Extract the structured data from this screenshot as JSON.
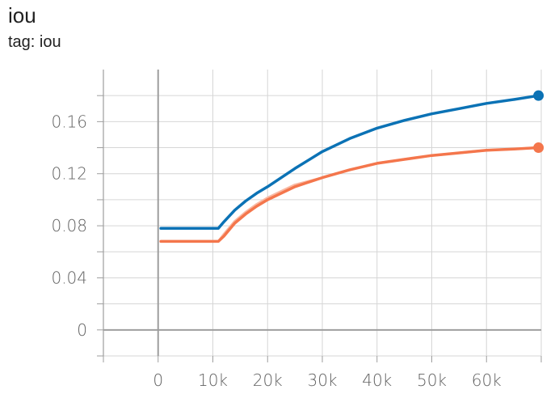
{
  "header": {
    "title": "iou",
    "tag": "tag: iou"
  },
  "chart_data": {
    "type": "line",
    "title": "iou",
    "subtitle": "tag: iou",
    "xlabel": "",
    "ylabel": "",
    "xlim": [
      -10000,
      70000
    ],
    "ylim": [
      -0.02,
      0.2
    ],
    "grid": true,
    "xticks": [
      0,
      10000,
      20000,
      30000,
      40000,
      50000,
      60000
    ],
    "xtick_labels": [
      "0",
      "10k",
      "20k",
      "30k",
      "40k",
      "50k",
      "60k"
    ],
    "yticks": [
      0,
      0.04,
      0.08,
      0.12,
      0.16
    ],
    "ytick_labels": [
      "0",
      "0.04",
      "0.08",
      "0.12",
      "0.16"
    ],
    "colors": {
      "series_blue": "#0b72b5",
      "series_orange": "#f4764c",
      "orange_raw": "#f9b9a3",
      "grid": "#d6d6d6",
      "axis": "#9e9e9e"
    },
    "series": [
      {
        "color": "#0b72b5",
        "x": [
          500,
          5000,
          10000,
          11000,
          12000,
          14000,
          16000,
          18000,
          20000,
          25000,
          30000,
          35000,
          40000,
          45000,
          50000,
          55000,
          60000,
          65000,
          69500
        ],
        "y": [
          0.078,
          0.078,
          0.078,
          0.078,
          0.083,
          0.092,
          0.099,
          0.105,
          0.11,
          0.124,
          0.137,
          0.147,
          0.155,
          0.161,
          0.166,
          0.17,
          0.174,
          0.177,
          0.18
        ]
      },
      {
        "color": "#f4764c",
        "x": [
          500,
          5000,
          10000,
          11000,
          12000,
          14000,
          16000,
          18000,
          20000,
          25000,
          30000,
          35000,
          40000,
          45000,
          50000,
          55000,
          60000,
          65000,
          69500
        ],
        "y": [
          0.068,
          0.068,
          0.068,
          0.068,
          0.072,
          0.082,
          0.089,
          0.095,
          0.1,
          0.11,
          0.117,
          0.123,
          0.128,
          0.131,
          0.134,
          0.136,
          0.138,
          0.139,
          0.14
        ]
      }
    ]
  }
}
